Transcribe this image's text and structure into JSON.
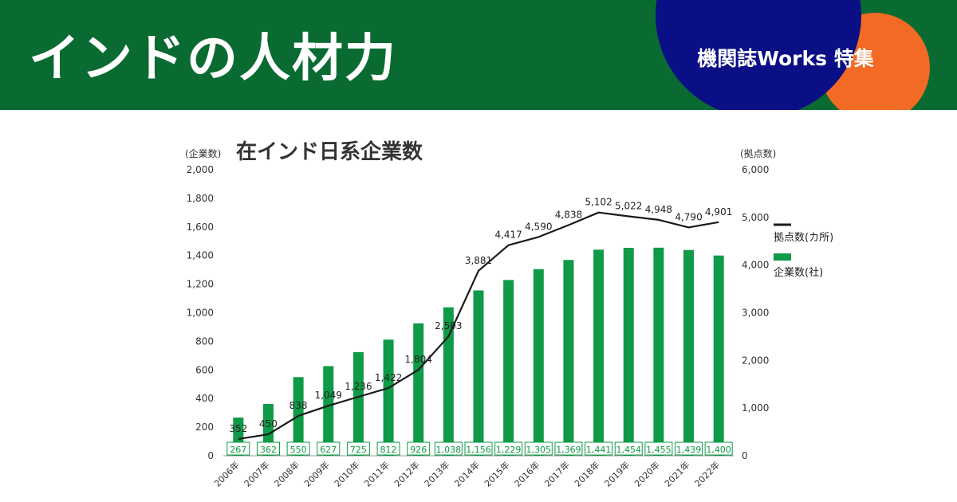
{
  "header": {
    "title": "インドの人材力",
    "badge": "機関誌Works 特集"
  },
  "colors": {
    "header_bg": "#0a6b32",
    "badge_navy": "#0b0f85",
    "badge_orange": "#f26a24",
    "bar": "#0e9a46",
    "line": "#1a1a1a"
  },
  "chart_data": {
    "type": "bar",
    "title": "在インド日系企業数",
    "categories": [
      "2006年",
      "2007年",
      "2008年",
      "2009年",
      "2010年",
      "2011年",
      "2012年",
      "2013年",
      "2014年",
      "2015年",
      "2016年",
      "2017年",
      "2018年",
      "2019年",
      "2020年",
      "2021年",
      "2022年"
    ],
    "left_axis": {
      "label": "(企業数)",
      "ylim": [
        0,
        2000
      ],
      "ticks": [
        0,
        200,
        400,
        600,
        800,
        1000,
        1200,
        1400,
        1600,
        1800,
        2000
      ],
      "tick_labels": [
        "0",
        "200",
        "400",
        "600",
        "800",
        "1,000",
        "1,200",
        "1,400",
        "1,600",
        "1,800",
        "2,000"
      ]
    },
    "right_axis": {
      "label": "(拠点数)",
      "ylim": [
        0,
        6000
      ],
      "ticks": [
        0,
        1000,
        2000,
        3000,
        4000,
        5000,
        6000
      ],
      "tick_labels": [
        "0",
        "1,000",
        "2,000",
        "3,000",
        "4,000",
        "5,000",
        "6,000"
      ]
    },
    "series": [
      {
        "name": "企業数(社)",
        "type": "bar",
        "axis": "left",
        "values": [
          267,
          362,
          550,
          627,
          725,
          812,
          926,
          1038,
          1156,
          1229,
          1305,
          1369,
          1441,
          1454,
          1455,
          1439,
          1400
        ],
        "labels": [
          "267",
          "362",
          "550",
          "627",
          "725",
          "812",
          "926",
          "1,038",
          "1,156",
          "1,229",
          "1,305",
          "1,369",
          "1,441",
          "1,454",
          "1,455",
          "1,439",
          "1,400"
        ]
      },
      {
        "name": "拠点数(カ所)",
        "type": "line",
        "axis": "right",
        "values": [
          352,
          450,
          838,
          1049,
          1236,
          1422,
          1804,
          2503,
          3881,
          4417,
          4590,
          4838,
          5102,
          5022,
          4948,
          4790,
          4901
        ],
        "labels": [
          "352",
          "450",
          "838",
          "1,049",
          "1,236",
          "1,422",
          "1,804",
          "2,503",
          "3,881",
          "4,417",
          "4,590",
          "4,838",
          "5,102",
          "5,022",
          "4,948",
          "4,790",
          "4,901"
        ]
      }
    ],
    "legend_position": "right",
    "grid": false
  }
}
